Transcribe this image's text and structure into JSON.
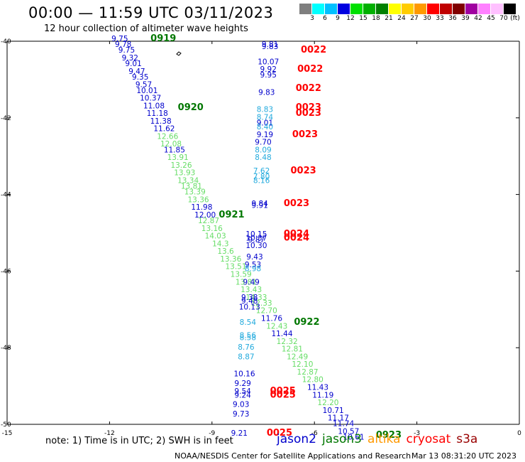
{
  "header": {
    "title": "00:00 — 11:59 UTC 03/11/2023",
    "subtitle": "12 hour collection of altimeter wave heights"
  },
  "colorbar": {
    "unit": "(ft)",
    "segments": [
      {
        "color": "#7f7f7f",
        "label": "3"
      },
      {
        "color": "#00ffff",
        "label": "6"
      },
      {
        "color": "#00c0ff",
        "label": "9"
      },
      {
        "color": "#0000e0",
        "label": "12"
      },
      {
        "color": "#00e000",
        "label": "15"
      },
      {
        "color": "#00b000",
        "label": "18"
      },
      {
        "color": "#008000",
        "label": "21"
      },
      {
        "color": "#ffff00",
        "label": "24"
      },
      {
        "color": "#ffcc00",
        "label": "27"
      },
      {
        "color": "#ff9900",
        "label": "30"
      },
      {
        "color": "#ff0000",
        "label": "33"
      },
      {
        "color": "#c00000",
        "label": "36"
      },
      {
        "color": "#800000",
        "label": "39"
      },
      {
        "color": "#a000a0",
        "label": "42"
      },
      {
        "color": "#ff80ff",
        "label": "45"
      },
      {
        "color": "#ffc0ff",
        "label": "70"
      },
      {
        "color": "#000000",
        "label": ""
      }
    ]
  },
  "axes": {
    "lon_labels": [
      "-15",
      "-12",
      "-9",
      "-6",
      "-3",
      "0"
    ],
    "lat_labels": [
      "-40",
      "-42",
      "-44",
      "-46",
      "-48",
      "-50"
    ]
  },
  "observations": {
    "pass_a": [
      {
        "lon": -11.7,
        "lat": -40.0,
        "v": "9.75",
        "c": "#0000cc"
      },
      {
        "lon": -11.6,
        "lat": -40.15,
        "v": "9.78",
        "c": "#0000cc"
      },
      {
        "lon": -11.5,
        "lat": -40.3,
        "v": "9.75",
        "c": "#0000cc"
      },
      {
        "lon": -11.4,
        "lat": -40.5,
        "v": "9.32",
        "c": "#0000cc"
      },
      {
        "lon": -11.3,
        "lat": -40.65,
        "v": "9.01",
        "c": "#0000cc"
      },
      {
        "lon": -11.2,
        "lat": -40.85,
        "v": "9.47",
        "c": "#0000cc"
      },
      {
        "lon": -11.1,
        "lat": -41.0,
        "v": "9.35",
        "c": "#0000cc"
      },
      {
        "lon": -11.0,
        "lat": -41.2,
        "v": "9.57",
        "c": "#0000cc"
      },
      {
        "lon": -10.9,
        "lat": -41.35,
        "v": "10.01",
        "c": "#0000cc"
      },
      {
        "lon": -10.8,
        "lat": -41.55,
        "v": "10.37",
        "c": "#0000cc"
      },
      {
        "lon": -10.7,
        "lat": -41.75,
        "v": "11.08",
        "c": "#0000cc"
      },
      {
        "lon": -10.6,
        "lat": -41.95,
        "v": "11.18",
        "c": "#0000cc"
      },
      {
        "lon": -10.5,
        "lat": -42.15,
        "v": "11.38",
        "c": "#0000cc"
      },
      {
        "lon": -10.4,
        "lat": -42.35,
        "v": "11.62",
        "c": "#0000cc"
      },
      {
        "lon": -10.3,
        "lat": -42.55,
        "v": "12.66",
        "c": "#66dd66"
      },
      {
        "lon": -10.2,
        "lat": -42.75,
        "v": "12.08",
        "c": "#66dd66"
      },
      {
        "lon": -10.1,
        "lat": -42.9,
        "v": "11.85",
        "c": "#0000cc"
      },
      {
        "lon": -10.0,
        "lat": -43.1,
        "v": "13.91",
        "c": "#66dd66"
      },
      {
        "lon": -9.9,
        "lat": -43.3,
        "v": "13.26",
        "c": "#66dd66"
      },
      {
        "lon": -9.8,
        "lat": -43.5,
        "v": "13.93",
        "c": "#66dd66"
      },
      {
        "lon": -9.7,
        "lat": -43.7,
        "v": "13.34",
        "c": "#66dd66"
      },
      {
        "lon": -9.6,
        "lat": -43.85,
        "v": "13.81",
        "c": "#66dd66"
      },
      {
        "lon": -9.5,
        "lat": -44.0,
        "v": "13.39",
        "c": "#66dd66"
      },
      {
        "lon": -9.4,
        "lat": -44.2,
        "v": "13.36",
        "c": "#66dd66"
      },
      {
        "lon": -9.3,
        "lat": -44.4,
        "v": "11.98",
        "c": "#0000cc"
      },
      {
        "lon": -9.2,
        "lat": -44.6,
        "v": "12.00",
        "c": "#0000cc"
      },
      {
        "lon": -9.1,
        "lat": -44.75,
        "v": "12.87",
        "c": "#66dd66"
      },
      {
        "lon": -9.0,
        "lat": -44.95,
        "v": "13.16",
        "c": "#66dd66"
      },
      {
        "lon": -8.9,
        "lat": -45.15,
        "v": "14.03",
        "c": "#66dd66"
      },
      {
        "lon": -8.75,
        "lat": -45.35,
        "v": "14.3",
        "c": "#66dd66"
      },
      {
        "lon": -8.6,
        "lat": -45.55,
        "v": "13.6",
        "c": "#66dd66"
      },
      {
        "lon": -8.45,
        "lat": -45.75,
        "v": "13.36",
        "c": "#66dd66"
      },
      {
        "lon": -8.3,
        "lat": -45.95,
        "v": "13.51",
        "c": "#66dd66"
      },
      {
        "lon": -8.15,
        "lat": -46.15,
        "v": "13.59",
        "c": "#66dd66"
      },
      {
        "lon": -8.0,
        "lat": -46.35,
        "v": "13.81",
        "c": "#66dd66"
      },
      {
        "lon": -7.85,
        "lat": -46.55,
        "v": "13.43",
        "c": "#66dd66"
      },
      {
        "lon": -7.7,
        "lat": -46.75,
        "v": "14.33",
        "c": "#66dd66"
      },
      {
        "lon": -7.55,
        "lat": -46.9,
        "v": "12.33",
        "c": "#66dd66"
      },
      {
        "lon": -7.4,
        "lat": -47.1,
        "v": "12.70",
        "c": "#66dd66"
      },
      {
        "lon": -7.25,
        "lat": -47.3,
        "v": "11.76",
        "c": "#0000cc"
      },
      {
        "lon": -7.1,
        "lat": -47.5,
        "v": "12.43",
        "c": "#66dd66"
      },
      {
        "lon": -6.95,
        "lat": -47.7,
        "v": "11.44",
        "c": "#0000cc"
      },
      {
        "lon": -6.8,
        "lat": -47.9,
        "v": "12.32",
        "c": "#66dd66"
      },
      {
        "lon": -6.65,
        "lat": -48.1,
        "v": "12.81",
        "c": "#66dd66"
      },
      {
        "lon": -6.5,
        "lat": -48.3,
        "v": "12.49",
        "c": "#66dd66"
      },
      {
        "lon": -6.35,
        "lat": -48.5,
        "v": "12.10",
        "c": "#66dd66"
      },
      {
        "lon": -6.2,
        "lat": -48.7,
        "v": "12.87",
        "c": "#66dd66"
      },
      {
        "lon": -6.05,
        "lat": -48.9,
        "v": "12.80",
        "c": "#66dd66"
      },
      {
        "lon": -5.9,
        "lat": -49.1,
        "v": "11.43",
        "c": "#0000cc"
      },
      {
        "lon": -5.75,
        "lat": -49.3,
        "v": "11.19",
        "c": "#0000cc"
      },
      {
        "lon": -5.6,
        "lat": -49.5,
        "v": "12.20",
        "c": "#66dd66"
      },
      {
        "lon": -5.45,
        "lat": -49.7,
        "v": "10.71",
        "c": "#0000cc"
      },
      {
        "lon": -5.3,
        "lat": -49.9,
        "v": "11.17",
        "c": "#0000cc"
      },
      {
        "lon": -5.15,
        "lat": -50.05,
        "v": "11.74",
        "c": "#0000cc"
      },
      {
        "lon": -5.0,
        "lat": -50.25,
        "v": "10.57",
        "c": "#0000cc"
      },
      {
        "lon": -4.85,
        "lat": -50.4,
        "v": "10.61",
        "c": "#0000cc"
      }
    ],
    "pass_b": [
      {
        "lon": -7.3,
        "lat": -40.15,
        "v": "9.81",
        "c": "#0000cc"
      },
      {
        "lon": -7.3,
        "lat": -40.2,
        "v": "9.83",
        "c": "#0000cc"
      },
      {
        "lon": -7.35,
        "lat": -40.6,
        "v": "10.07",
        "c": "#0000cc"
      },
      {
        "lon": -7.35,
        "lat": -40.8,
        "v": "9.92",
        "c": "#0000cc"
      },
      {
        "lon": -7.35,
        "lat": -40.95,
        "v": "9.95",
        "c": "#0000cc"
      },
      {
        "lon": -7.4,
        "lat": -41.4,
        "v": "9.83",
        "c": "#0000cc"
      },
      {
        "lon": -7.45,
        "lat": -41.85,
        "v": "8.83",
        "c": "#22aadd"
      },
      {
        "lon": -7.45,
        "lat": -42.05,
        "v": "8.74",
        "c": "#22aadd"
      },
      {
        "lon": -7.45,
        "lat": -42.2,
        "v": "9.01",
        "c": "#0000cc"
      },
      {
        "lon": -7.45,
        "lat": -42.3,
        "v": "8.40",
        "c": "#22aadd"
      },
      {
        "lon": -7.45,
        "lat": -42.5,
        "v": "9.19",
        "c": "#0000cc"
      },
      {
        "lon": -7.5,
        "lat": -42.7,
        "v": "9.70",
        "c": "#0000cc"
      },
      {
        "lon": -7.5,
        "lat": -42.9,
        "v": "8.09",
        "c": "#22aadd"
      },
      {
        "lon": -7.5,
        "lat": -43.1,
        "v": "8.48",
        "c": "#22aadd"
      },
      {
        "lon": -7.55,
        "lat": -43.45,
        "v": "7.62",
        "c": "#22aadd"
      },
      {
        "lon": -7.55,
        "lat": -43.6,
        "v": "7.80",
        "c": "#22aadd"
      },
      {
        "lon": -7.55,
        "lat": -43.7,
        "v": "8.16",
        "c": "#22aadd"
      },
      {
        "lon": -7.6,
        "lat": -44.3,
        "v": "9.84",
        "c": "#0000cc"
      },
      {
        "lon": -7.6,
        "lat": -44.35,
        "v": "9.91",
        "c": "#0000cc"
      },
      {
        "lon": -7.7,
        "lat": -45.1,
        "v": "10.15",
        "c": "#0000cc"
      },
      {
        "lon": -7.7,
        "lat": -45.2,
        "v": "10.37",
        "c": "#0000cc"
      },
      {
        "lon": -7.7,
        "lat": -45.25,
        "v": "9.87",
        "c": "#0000cc"
      },
      {
        "lon": -7.7,
        "lat": -45.4,
        "v": "10.30",
        "c": "#0000cc"
      },
      {
        "lon": -7.75,
        "lat": -45.7,
        "v": "9.43",
        "c": "#0000cc"
      },
      {
        "lon": -7.8,
        "lat": -45.9,
        "v": "9.53",
        "c": "#0000cc"
      },
      {
        "lon": -7.8,
        "lat": -46.0,
        "v": "8.98",
        "c": "#22aadd"
      },
      {
        "lon": -7.85,
        "lat": -46.35,
        "v": "9.49",
        "c": "#0000cc"
      },
      {
        "lon": -7.9,
        "lat": -46.75,
        "v": "9.38",
        "c": "#0000cc"
      },
      {
        "lon": -7.9,
        "lat": -46.85,
        "v": "9.48",
        "c": "#0000cc"
      },
      {
        "lon": -7.9,
        "lat": -47.0,
        "v": "10.13",
        "c": "#0000cc"
      },
      {
        "lon": -7.95,
        "lat": -47.4,
        "v": "8.54",
        "c": "#22aadd"
      },
      {
        "lon": -7.95,
        "lat": -47.75,
        "v": "8.56",
        "c": "#22aadd"
      },
      {
        "lon": -7.95,
        "lat": -47.8,
        "v": "8.58",
        "c": "#22aadd"
      },
      {
        "lon": -8.0,
        "lat": -48.05,
        "v": "8.76",
        "c": "#22aadd"
      },
      {
        "lon": -8.0,
        "lat": -48.3,
        "v": "8.87",
        "c": "#22aadd"
      },
      {
        "lon": -8.05,
        "lat": -48.75,
        "v": "10.16",
        "c": "#0000cc"
      },
      {
        "lon": -8.1,
        "lat": -49.0,
        "v": "9.29",
        "c": "#0000cc"
      },
      {
        "lon": -8.1,
        "lat": -49.2,
        "v": "9.54",
        "c": "#0000cc"
      },
      {
        "lon": -8.1,
        "lat": -49.3,
        "v": "9.24",
        "c": "#0000cc"
      },
      {
        "lon": -8.15,
        "lat": -49.55,
        "v": "9.03",
        "c": "#0000cc"
      },
      {
        "lon": -8.15,
        "lat": -49.8,
        "v": "9.73",
        "c": "#0000cc"
      },
      {
        "lon": -8.2,
        "lat": -50.3,
        "v": "9.21",
        "c": "#0000cc"
      }
    ]
  },
  "time_labels": [
    {
      "lon": -10.8,
      "lat": -40.0,
      "t": "0919",
      "c": "#007700"
    },
    {
      "lon": -10.0,
      "lat": -41.8,
      "t": "0920",
      "c": "#007700"
    },
    {
      "lon": -8.8,
      "lat": -44.6,
      "t": "0921",
      "c": "#007700"
    },
    {
      "lon": -6.6,
      "lat": -47.4,
      "t": "0922",
      "c": "#007700"
    },
    {
      "lon": -4.2,
      "lat": -50.35,
      "t": "0923",
      "c": "#007700"
    },
    {
      "lon": -6.4,
      "lat": -40.3,
      "t": "0022",
      "c": "#ff0000"
    },
    {
      "lon": -6.5,
      "lat": -40.8,
      "t": "0022",
      "c": "#ff0000"
    },
    {
      "lon": -6.55,
      "lat": -41.3,
      "t": "0022",
      "c": "#ff0000"
    },
    {
      "lon": -6.55,
      "lat": -41.8,
      "t": "0023",
      "c": "#ff0000"
    },
    {
      "lon": -6.55,
      "lat": -41.95,
      "t": "0023",
      "c": "#ff0000"
    },
    {
      "lon": -6.65,
      "lat": -42.5,
      "t": "0023",
      "c": "#ff0000"
    },
    {
      "lon": -6.7,
      "lat": -43.45,
      "t": "0023",
      "c": "#ff0000"
    },
    {
      "lon": -6.9,
      "lat": -44.3,
      "t": "0023",
      "c": "#ff0000"
    },
    {
      "lon": -6.9,
      "lat": -45.1,
      "t": "0024",
      "c": "#ff0000"
    },
    {
      "lon": -6.9,
      "lat": -45.2,
      "t": "0024",
      "c": "#ff0000"
    },
    {
      "lon": -7.3,
      "lat": -49.2,
      "t": "0025",
      "c": "#ff0000"
    },
    {
      "lon": -7.3,
      "lat": -49.3,
      "t": "0025",
      "c": "#ff0000"
    },
    {
      "lon": -7.4,
      "lat": -50.3,
      "t": "0025",
      "c": "#ff0000"
    }
  ],
  "note": "note:  1) Time is in UTC; 2) SWH is in feet",
  "legend": [
    {
      "name": "jason2",
      "color": "#0000cc"
    },
    {
      "name": "jason3",
      "color": "#007700"
    },
    {
      "name": "altika",
      "color": "#ff9900"
    },
    {
      "name": "cryosat",
      "color": "#ff0000"
    },
    {
      "name": "s3a",
      "color": "#990000"
    }
  ],
  "footer": {
    "credit": "NOAA/NESDIS Center for Satellite Applications and Research",
    "timestamp": "Mar 13 08:31:20 UTC 2023"
  }
}
